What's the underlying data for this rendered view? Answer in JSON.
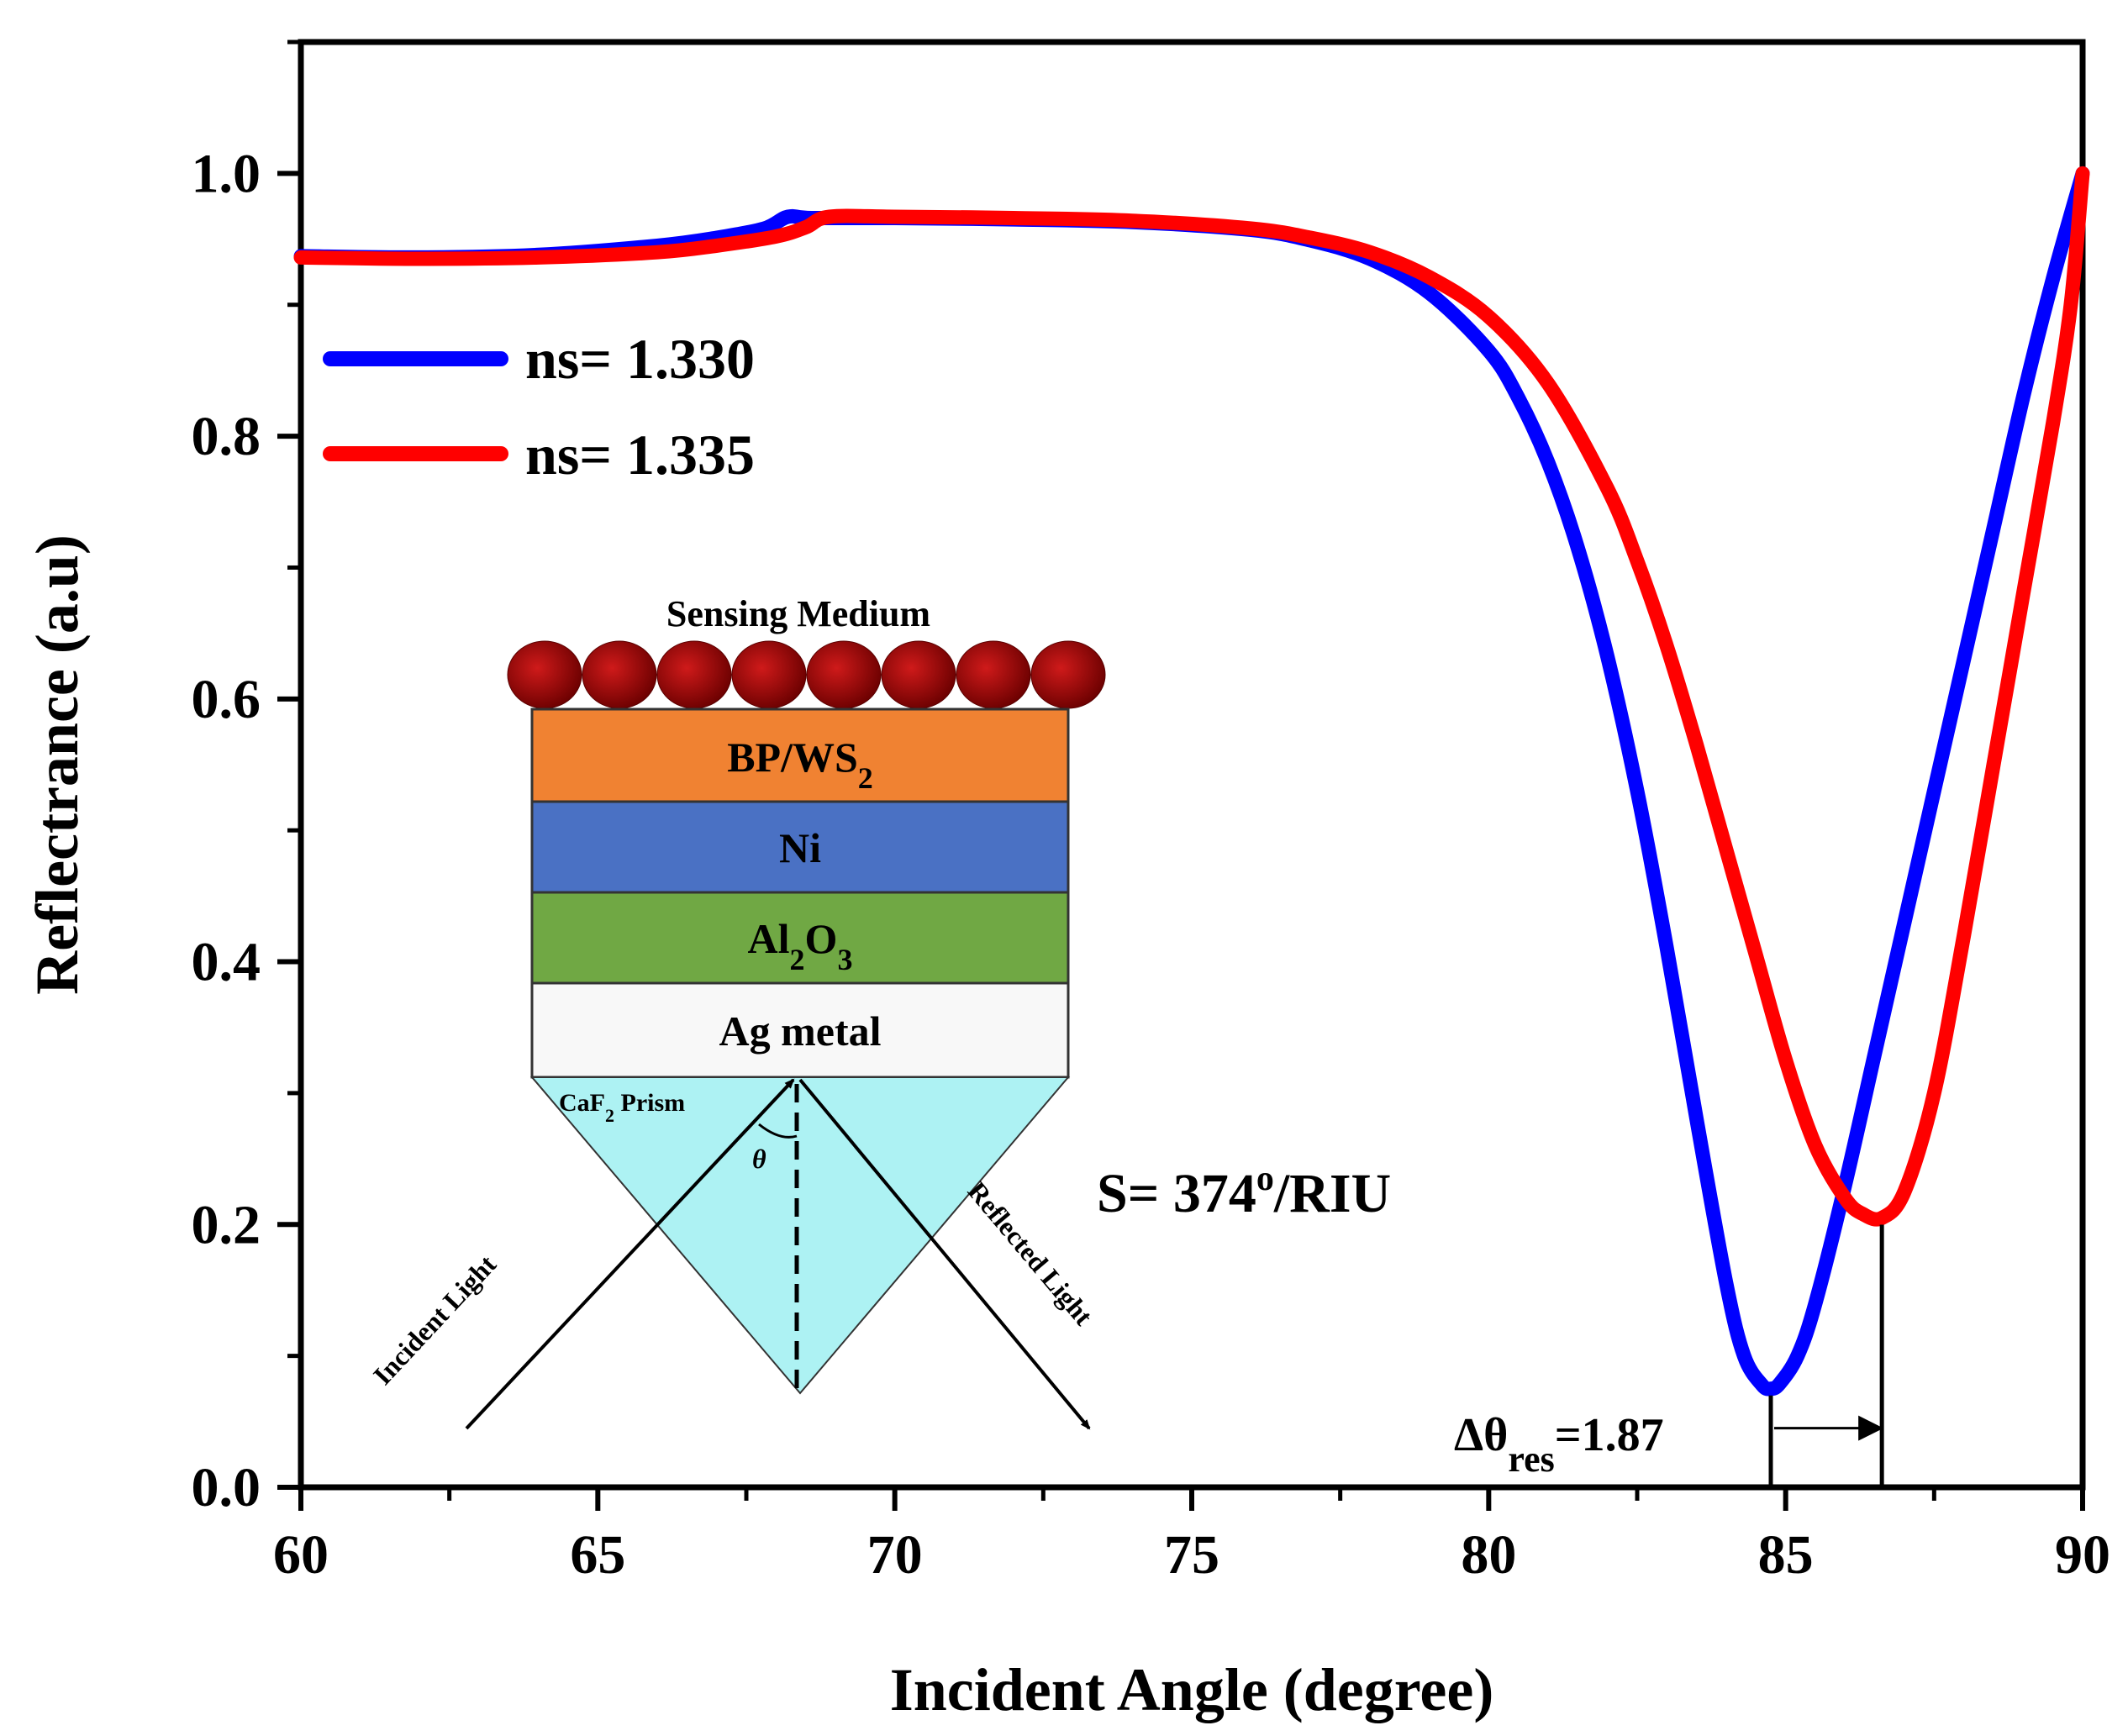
{
  "chart_data": {
    "type": "line",
    "xlabel": "Incident Angle (degree)",
    "ylabel": "Reflectrance (a.u)",
    "xlim": [
      60,
      90
    ],
    "ylim": [
      0,
      1.1
    ],
    "xticks": [
      "60",
      "65",
      "70",
      "75",
      "80",
      "85",
      "90"
    ],
    "yticks": [
      "0.0",
      "0.2",
      "0.4",
      "0.6",
      "0.8",
      "1.0"
    ],
    "xtick_values": [
      60,
      65,
      70,
      75,
      80,
      85,
      90
    ],
    "ytick_values": [
      0,
      0.2,
      0.4,
      0.6,
      0.8,
      1.0
    ],
    "legend_position": "upper-left",
    "series": [
      {
        "name": "ns= 1.330",
        "color": "#0000ff",
        "x": [
          60,
          62,
          64,
          66,
          67,
          67.8,
          68.2,
          68.6,
          70,
          72,
          74,
          76,
          77,
          78,
          79,
          80,
          80.5,
          81,
          81.5,
          82,
          82.5,
          83,
          83.5,
          84,
          84.3,
          84.6,
          84.75,
          84.9,
          85.2,
          85.5,
          86,
          86.5,
          87,
          87.5,
          88,
          88.5,
          89,
          89.5,
          90
        ],
        "y": [
          0.937,
          0.936,
          0.938,
          0.945,
          0.951,
          0.958,
          0.967,
          0.966,
          0.966,
          0.965,
          0.963,
          0.957,
          0.949,
          0.935,
          0.909,
          0.865,
          0.829,
          0.78,
          0.715,
          0.632,
          0.53,
          0.41,
          0.28,
          0.155,
          0.1,
          0.078,
          0.075,
          0.079,
          0.1,
          0.14,
          0.23,
          0.33,
          0.43,
          0.53,
          0.63,
          0.73,
          0.83,
          0.92,
          1.0
        ]
      },
      {
        "name": "ns= 1.335",
        "color": "#ff0000",
        "x": [
          60,
          62,
          64,
          66,
          67,
          68,
          68.5,
          68.9,
          70,
          72,
          74,
          76,
          77,
          78,
          79,
          80,
          81,
          82,
          82.5,
          83,
          83.5,
          84,
          84.5,
          85,
          85.5,
          86,
          86.3,
          86.62,
          87,
          87.5,
          88,
          88.5,
          89,
          89.5,
          89.8,
          90
        ],
        "y": [
          0.936,
          0.935,
          0.936,
          0.94,
          0.945,
          0.952,
          0.959,
          0.967,
          0.967,
          0.966,
          0.964,
          0.958,
          0.951,
          0.94,
          0.921,
          0.891,
          0.84,
          0.76,
          0.705,
          0.64,
          0.565,
          0.485,
          0.405,
          0.325,
          0.26,
          0.22,
          0.208,
          0.205,
          0.225,
          0.3,
          0.42,
          0.55,
          0.68,
          0.81,
          0.9,
          1.0
        ]
      }
    ],
    "annotations": {
      "sensitivity": "S= 374",
      "sensitivity_sup": "o",
      "sensitivity_unit": "/RIU",
      "delta_main": "Δθ",
      "delta_sub": "res",
      "delta_value": "=1.87",
      "delta_x_values": [
        84.75,
        86.62
      ],
      "delta_y_values": [
        0.075,
        0.205
      ]
    }
  },
  "inset": {
    "sensing_medium": "Sensing Medium",
    "layers": [
      {
        "main": "BP/WS",
        "sub": "2",
        "after": "",
        "color": "#f08232"
      },
      {
        "main": "Ni",
        "sub": "",
        "after": "",
        "color": "#4a71c4"
      },
      {
        "main": "Al",
        "sub": "2",
        "after": "O",
        "sub2": "3",
        "color": "#70a844"
      },
      {
        "main": "Ag metal",
        "sub": "",
        "after": "",
        "color": "#f8f8f8"
      }
    ],
    "prism_main": "CaF",
    "prism_sub": "2",
    "prism_after": " Prism",
    "prism_color": "#adf2f3",
    "theta": "θ",
    "incident": "Incident Light",
    "reflected": "Reflected Light",
    "ball_color": "#b00000"
  }
}
